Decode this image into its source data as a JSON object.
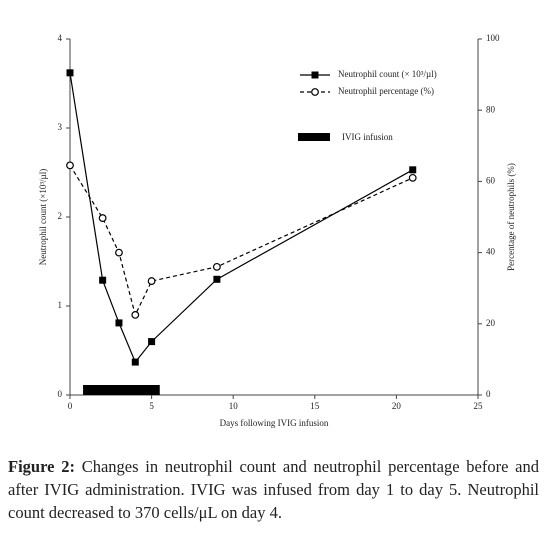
{
  "chart_data": {
    "type": "line",
    "xlabel": "Days following IVIG infusion",
    "ylabel": "Neutrophil count (×10³/µl)",
    "y2label": "Percentage of neutrophils (%)",
    "x": [
      0,
      2,
      3,
      4,
      5,
      9,
      21
    ],
    "series": [
      {
        "name": "Neutrophil count (× 10³/µl)",
        "color": "#000000",
        "marker": "square",
        "dash": false,
        "values": [
          3.62,
          1.29,
          0.81,
          0.37,
          0.6,
          1.3,
          2.53
        ]
      },
      {
        "name": "Neutrophil percentage (%)",
        "color": "#000000",
        "marker": "circle",
        "dash": true,
        "axis": "y2",
        "values": [
          64.5,
          49.7,
          40,
          22.5,
          32,
          36,
          61
        ]
      }
    ],
    "infusion": {
      "name": "IVIG infusion",
      "color": "#000000",
      "x": [
        0.8,
        5.5
      ]
    },
    "xlim": [
      0,
      25
    ],
    "xticks": [
      0,
      5,
      10,
      15,
      20,
      25
    ],
    "ylim": [
      0,
      4
    ],
    "yticks": [
      0,
      1,
      2,
      3,
      4
    ],
    "y2lim": [
      0,
      100
    ],
    "y2ticks": [
      0,
      20,
      40,
      60,
      80,
      100
    ]
  },
  "caption": {
    "label": "Figure 2:",
    "text": "Changes in neutrophil count and neutrophil percentage before and after IVIG administration. IVIG was infused from day 1 to day 5. Neutrophil count decreased to 370 cells/μL on day 4."
  }
}
